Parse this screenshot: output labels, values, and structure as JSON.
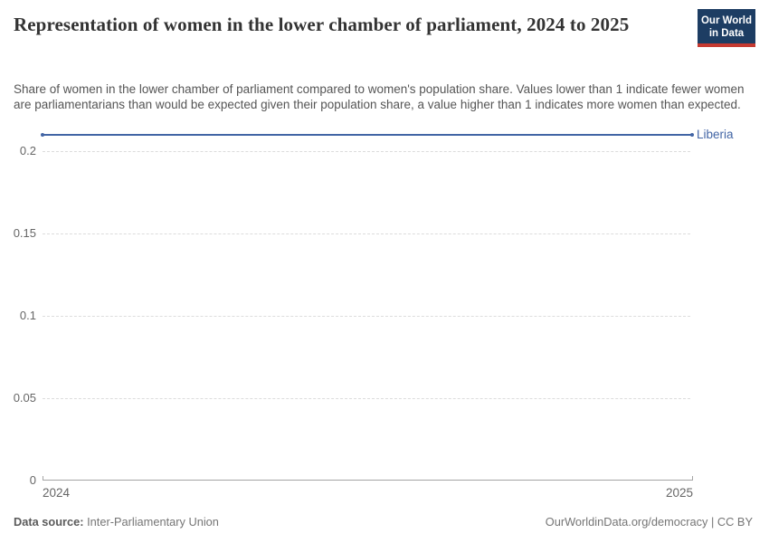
{
  "header": {
    "title": "Representation of women in the lower chamber of parliament, 2024 to 2025",
    "subtitle": "Share of women in the lower chamber of parliament compared to women's population share. Values lower than 1 indicate fewer women are parliamentarians than would be expected given their population share, a value higher than 1 indicates more women than expected.",
    "logo": {
      "line1": "Our World",
      "line2": "in Data",
      "bg_color": "#1d3d63",
      "accent_color": "#c63a31"
    }
  },
  "chart_data": {
    "type": "line",
    "title": "Representation of women in the lower chamber of parliament, 2024 to 2025",
    "x": [
      2024,
      2025
    ],
    "x_labels": [
      "2024",
      "2025"
    ],
    "series": [
      {
        "name": "Liberia",
        "values": [
          0.21,
          0.21
        ],
        "color": "#4265a5"
      }
    ],
    "y_ticks": [
      0,
      0.05,
      0.1,
      0.15,
      0.2
    ],
    "y_tick_labels": [
      "0",
      "0.05",
      "0.1",
      "0.15",
      "0.2"
    ],
    "ylim": [
      0,
      0.21
    ],
    "xlabel": "",
    "ylabel": "",
    "grid": "horizontal-dashed",
    "legend": "inline-right-label"
  },
  "footer": {
    "data_source_label": "Data source:",
    "data_source_value": "Inter-Parliamentary Union",
    "attribution": "OurWorldinData.org/democracy | CC BY"
  }
}
